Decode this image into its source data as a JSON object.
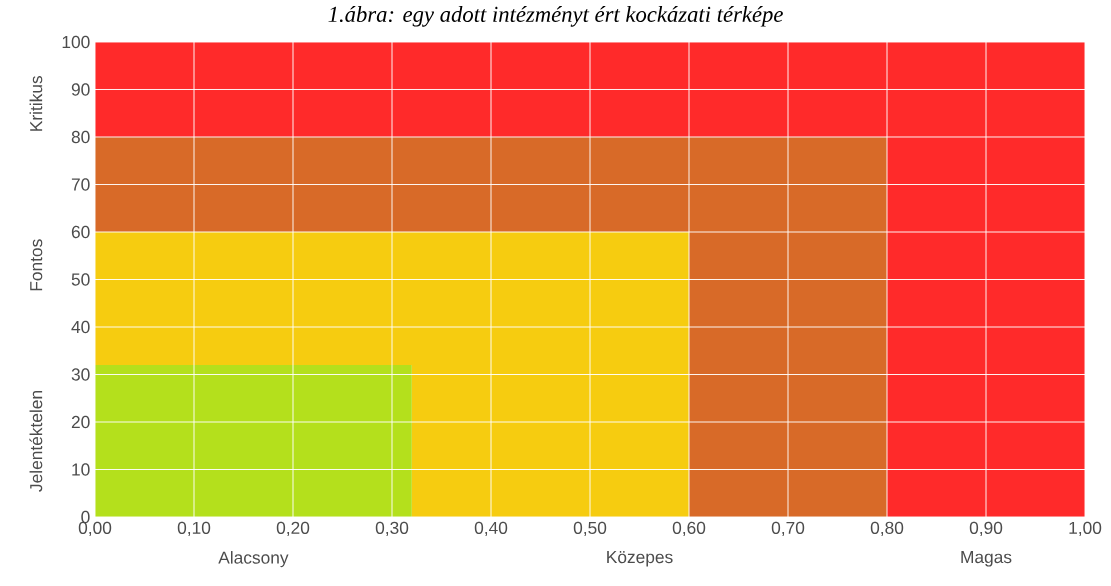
{
  "chart_data": {
    "type": "area",
    "title": "1.ábra: egy adott intézményt ért kockázati térképe",
    "stacked": true,
    "x": [
      0,
      0.32,
      0.32,
      0.6,
      0.6,
      0.8,
      0.8,
      1
    ],
    "series": [
      {
        "values": [
          32,
          32,
          0,
          0,
          0,
          0,
          0,
          0
        ],
        "color": "#b4e01c"
      },
      {
        "values": [
          28,
          28,
          60,
          60,
          0,
          0,
          0,
          0
        ],
        "color": "#f6cc10"
      },
      {
        "values": [
          20,
          20,
          20,
          20,
          80,
          80,
          0,
          0
        ],
        "color": "#d86a28"
      },
      {
        "values": [
          20,
          20,
          20,
          20,
          20,
          20,
          100,
          100
        ],
        "color": "#ff2a2a"
      }
    ],
    "xlim": [
      0,
      1
    ],
    "ylim": [
      0,
      100
    ],
    "xticks": [
      {
        "value": 0,
        "label": "0,00"
      },
      {
        "value": 0.1,
        "label": "0,10"
      },
      {
        "value": 0.2,
        "label": "0,20"
      },
      {
        "value": 0.3,
        "label": "0,30"
      },
      {
        "value": 0.4,
        "label": "0,40"
      },
      {
        "value": 0.5,
        "label": "0,50"
      },
      {
        "value": 0.6,
        "label": "0,60"
      },
      {
        "value": 0.7,
        "label": "0,70"
      },
      {
        "value": 0.8,
        "label": "0,80"
      },
      {
        "value": 0.9,
        "label": "0,90"
      },
      {
        "value": 1,
        "label": "1,00"
      }
    ],
    "yticks": [
      0,
      10,
      20,
      30,
      40,
      50,
      60,
      70,
      80,
      90,
      100
    ],
    "grid": true,
    "annotations": [
      "Alacsony",
      "Közepes",
      "Magas",
      "Jelentéktelen",
      "Fontos",
      "Kritikus"
    ]
  }
}
